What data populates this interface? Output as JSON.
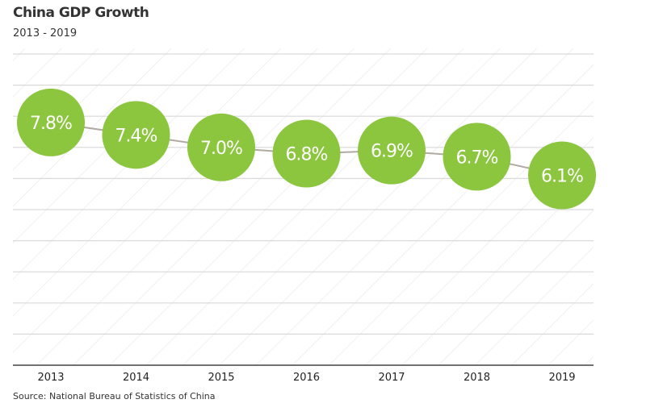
{
  "chart_data": {
    "type": "line",
    "title": "China GDP Growth",
    "subtitle": "2013 - 2019",
    "source": "Source: National Bureau of Statistics of China",
    "categories": [
      "2013",
      "2014",
      "2015",
      "2016",
      "2017",
      "2018",
      "2019"
    ],
    "values": [
      7.8,
      7.4,
      7.0,
      6.8,
      6.9,
      6.7,
      6.1
    ],
    "data_labels": [
      "7.8%",
      "7.4%",
      "7.0%",
      "6.8%",
      "6.9%",
      "6.7%",
      "6.1%"
    ],
    "xlabel": "",
    "ylabel": "",
    "ylim": [
      0,
      10
    ],
    "grid": true,
    "marker_color": "#8cc63f",
    "line_color": "#b0aaa3",
    "grid_color": "#d9d9d9",
    "axis_color": "#444444"
  }
}
